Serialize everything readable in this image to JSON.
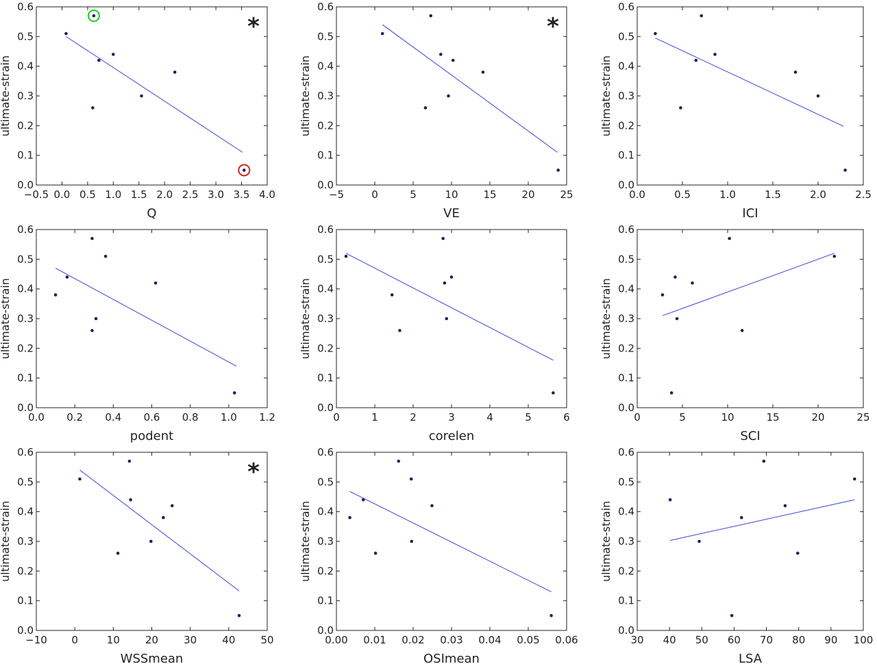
{
  "chart_data": [
    {
      "type": "scatter",
      "xlabel": "Q",
      "ylabel": "ultimate-strain",
      "xlim": [
        -0.5,
        4.0
      ],
      "ylim": [
        0.0,
        0.6
      ],
      "xticks": [
        -0.5,
        0.0,
        0.5,
        1.0,
        1.5,
        2.0,
        2.5,
        3.0,
        3.5,
        4.0
      ],
      "xtick_labels": [
        "−0.5",
        "0.0",
        "0.5",
        "1.0",
        "1.5",
        "2.0",
        "2.5",
        "3.0",
        "3.5",
        "4.0"
      ],
      "yticks": [
        0.0,
        0.1,
        0.2,
        0.3,
        0.4,
        0.5,
        0.6
      ],
      "ytick_labels": [
        "0.0",
        "0.1",
        "0.2",
        "0.3",
        "0.4",
        "0.5",
        "0.6"
      ],
      "points": [
        {
          "x": 0.08,
          "y": 0.51
        },
        {
          "x": 0.62,
          "y": 0.57
        },
        {
          "x": 0.72,
          "y": 0.42
        },
        {
          "x": 1.0,
          "y": 0.44
        },
        {
          "x": 0.6,
          "y": 0.26
        },
        {
          "x": 1.55,
          "y": 0.3
        },
        {
          "x": 2.2,
          "y": 0.38
        },
        {
          "x": 3.55,
          "y": 0.05
        }
      ],
      "fit_line": {
        "x": [
          0.08,
          3.52
        ],
        "y": [
          0.5,
          0.11
        ]
      },
      "significance_mark": "*",
      "highlights": [
        {
          "x": 0.62,
          "y": 0.57,
          "color": "#22cc22"
        },
        {
          "x": 3.55,
          "y": 0.05,
          "color": "#dd2222"
        }
      ],
      "grid": false
    },
    {
      "type": "scatter",
      "xlabel": "VE",
      "ylabel": "ultimate-strain",
      "xlim": [
        -5,
        25
      ],
      "ylim": [
        0.0,
        0.6
      ],
      "xticks": [
        -5,
        0,
        5,
        10,
        15,
        20,
        25
      ],
      "xtick_labels": [
        "−5",
        "0",
        "5",
        "10",
        "15",
        "20",
        "25"
      ],
      "yticks": [
        0.0,
        0.1,
        0.2,
        0.3,
        0.4,
        0.5,
        0.6
      ],
      "ytick_labels": [
        "0.0",
        "0.1",
        "0.2",
        "0.3",
        "0.4",
        "0.5",
        "0.6"
      ],
      "points": [
        {
          "x": 1.0,
          "y": 0.51
        },
        {
          "x": 7.3,
          "y": 0.57
        },
        {
          "x": 8.6,
          "y": 0.44
        },
        {
          "x": 10.2,
          "y": 0.42
        },
        {
          "x": 6.6,
          "y": 0.26
        },
        {
          "x": 9.6,
          "y": 0.3
        },
        {
          "x": 14.1,
          "y": 0.38
        },
        {
          "x": 23.9,
          "y": 0.05
        }
      ],
      "fit_line": {
        "x": [
          1.0,
          23.8
        ],
        "y": [
          0.54,
          0.11
        ]
      },
      "significance_mark": "*",
      "grid": false
    },
    {
      "type": "scatter",
      "xlabel": "ICI",
      "ylabel": "ultimate-strain",
      "xlim": [
        0.0,
        2.5
      ],
      "ylim": [
        0.0,
        0.6
      ],
      "xticks": [
        0.0,
        0.5,
        1.0,
        1.5,
        2.0,
        2.5
      ],
      "xtick_labels": [
        "0.0",
        "0.5",
        "1.0",
        "1.5",
        "2.0",
        "2.5"
      ],
      "yticks": [
        0.0,
        0.1,
        0.2,
        0.3,
        0.4,
        0.5,
        0.6
      ],
      "ytick_labels": [
        "0.0",
        "0.1",
        "0.2",
        "0.3",
        "0.4",
        "0.5",
        "0.6"
      ],
      "points": [
        {
          "x": 0.2,
          "y": 0.51
        },
        {
          "x": 0.71,
          "y": 0.57
        },
        {
          "x": 0.65,
          "y": 0.42
        },
        {
          "x": 0.86,
          "y": 0.44
        },
        {
          "x": 0.48,
          "y": 0.26
        },
        {
          "x": 2.0,
          "y": 0.3
        },
        {
          "x": 1.75,
          "y": 0.38
        },
        {
          "x": 2.3,
          "y": 0.05
        }
      ],
      "fit_line": {
        "x": [
          0.2,
          2.28
        ],
        "y": [
          0.495,
          0.198
        ]
      },
      "grid": false
    },
    {
      "type": "scatter",
      "xlabel": "podent",
      "ylabel": "ultimate-strain",
      "xlim": [
        0.0,
        1.2
      ],
      "ylim": [
        0.0,
        0.6
      ],
      "xticks": [
        0.0,
        0.2,
        0.4,
        0.6,
        0.8,
        1.0,
        1.2
      ],
      "xtick_labels": [
        "0.0",
        "0.2",
        "0.4",
        "0.6",
        "0.8",
        "1.0",
        "1.2"
      ],
      "yticks": [
        0.0,
        0.1,
        0.2,
        0.3,
        0.4,
        0.5,
        0.6
      ],
      "ytick_labels": [
        "0.0",
        "0.1",
        "0.2",
        "0.3",
        "0.4",
        "0.5",
        "0.6"
      ],
      "points": [
        {
          "x": 0.1,
          "y": 0.38
        },
        {
          "x": 0.16,
          "y": 0.44
        },
        {
          "x": 0.29,
          "y": 0.57
        },
        {
          "x": 0.36,
          "y": 0.51
        },
        {
          "x": 0.31,
          "y": 0.3
        },
        {
          "x": 0.29,
          "y": 0.26
        },
        {
          "x": 0.62,
          "y": 0.42
        },
        {
          "x": 1.03,
          "y": 0.05
        }
      ],
      "fit_line": {
        "x": [
          0.1,
          1.04
        ],
        "y": [
          0.47,
          0.14
        ]
      },
      "grid": false
    },
    {
      "type": "scatter",
      "xlabel": "corelen",
      "ylabel": "ultimate-strain",
      "xlim": [
        0,
        6
      ],
      "ylim": [
        0.0,
        0.6
      ],
      "xticks": [
        0,
        1,
        2,
        3,
        4,
        5,
        6
      ],
      "xtick_labels": [
        "0",
        "1",
        "2",
        "3",
        "4",
        "5",
        "6"
      ],
      "yticks": [
        0.0,
        0.1,
        0.2,
        0.3,
        0.4,
        0.5,
        0.6
      ],
      "ytick_labels": [
        "0.0",
        "0.1",
        "0.2",
        "0.3",
        "0.4",
        "0.5",
        "0.6"
      ],
      "points": [
        {
          "x": 0.25,
          "y": 0.51
        },
        {
          "x": 1.45,
          "y": 0.38
        },
        {
          "x": 1.65,
          "y": 0.26
        },
        {
          "x": 2.78,
          "y": 0.57
        },
        {
          "x": 2.82,
          "y": 0.42
        },
        {
          "x": 3.0,
          "y": 0.44
        },
        {
          "x": 2.87,
          "y": 0.3
        },
        {
          "x": 5.65,
          "y": 0.05
        }
      ],
      "fit_line": {
        "x": [
          0.25,
          5.65
        ],
        "y": [
          0.52,
          0.16
        ]
      },
      "grid": false
    },
    {
      "type": "scatter",
      "xlabel": "SCI",
      "ylabel": "ultimate-strain",
      "xlim": [
        0,
        25
      ],
      "ylim": [
        0.0,
        0.6
      ],
      "xticks": [
        0,
        5,
        10,
        15,
        20,
        25
      ],
      "xtick_labels": [
        "0",
        "5",
        "10",
        "15",
        "20",
        "25"
      ],
      "yticks": [
        0.0,
        0.1,
        0.2,
        0.3,
        0.4,
        0.5,
        0.6
      ],
      "ytick_labels": [
        "0.0",
        "0.1",
        "0.2",
        "0.3",
        "0.4",
        "0.5",
        "0.6"
      ],
      "points": [
        {
          "x": 2.8,
          "y": 0.38
        },
        {
          "x": 4.2,
          "y": 0.44
        },
        {
          "x": 4.4,
          "y": 0.3
        },
        {
          "x": 3.8,
          "y": 0.05
        },
        {
          "x": 6.1,
          "y": 0.42
        },
        {
          "x": 10.2,
          "y": 0.57
        },
        {
          "x": 11.6,
          "y": 0.26
        },
        {
          "x": 21.8,
          "y": 0.51
        }
      ],
      "fit_line": {
        "x": [
          2.8,
          21.8
        ],
        "y": [
          0.31,
          0.52
        ]
      },
      "grid": false
    },
    {
      "type": "scatter",
      "xlabel": "WSSmean",
      "ylabel": "ultimate-strain",
      "xlim": [
        -10,
        50
      ],
      "ylim": [
        0.0,
        0.6
      ],
      "xticks": [
        -10,
        0,
        10,
        20,
        30,
        40,
        50
      ],
      "xtick_labels": [
        "−10",
        "0",
        "10",
        "20",
        "30",
        "40",
        "50"
      ],
      "yticks": [
        0.0,
        0.1,
        0.2,
        0.3,
        0.4,
        0.5,
        0.6
      ],
      "ytick_labels": [
        "0.0",
        "0.1",
        "0.2",
        "0.3",
        "0.4",
        "0.5",
        "0.6"
      ],
      "points": [
        {
          "x": 1.3,
          "y": 0.51
        },
        {
          "x": 14.2,
          "y": 0.57
        },
        {
          "x": 14.5,
          "y": 0.44
        },
        {
          "x": 11.2,
          "y": 0.26
        },
        {
          "x": 19.8,
          "y": 0.3
        },
        {
          "x": 23.0,
          "y": 0.38
        },
        {
          "x": 25.3,
          "y": 0.42
        },
        {
          "x": 42.7,
          "y": 0.05
        }
      ],
      "fit_line": {
        "x": [
          1.3,
          42.7
        ],
        "y": [
          0.54,
          0.133
        ]
      },
      "significance_mark": "*",
      "grid": false
    },
    {
      "type": "scatter",
      "xlabel": "OSImean",
      "ylabel": "ultimate-strain",
      "xlim": [
        0.0,
        0.06
      ],
      "ylim": [
        0.0,
        0.6
      ],
      "xticks": [
        0.0,
        0.01,
        0.02,
        0.03,
        0.04,
        0.05,
        0.06
      ],
      "xtick_labels": [
        "0.00",
        "0.01",
        "0.02",
        "0.03",
        "0.04",
        "0.05",
        "0.06"
      ],
      "yticks": [
        0.0,
        0.1,
        0.2,
        0.3,
        0.4,
        0.5,
        0.6
      ],
      "ytick_labels": [
        "0.0",
        "0.1",
        "0.2",
        "0.3",
        "0.4",
        "0.5",
        "0.6"
      ],
      "points": [
        {
          "x": 0.0035,
          "y": 0.38
        },
        {
          "x": 0.007,
          "y": 0.44
        },
        {
          "x": 0.0102,
          "y": 0.26
        },
        {
          "x": 0.0162,
          "y": 0.57
        },
        {
          "x": 0.0195,
          "y": 0.51
        },
        {
          "x": 0.0196,
          "y": 0.3
        },
        {
          "x": 0.0249,
          "y": 0.42
        },
        {
          "x": 0.056,
          "y": 0.05
        }
      ],
      "fit_line": {
        "x": [
          0.0035,
          0.056
        ],
        "y": [
          0.468,
          0.13
        ]
      },
      "grid": false
    },
    {
      "type": "scatter",
      "xlabel": "LSA",
      "ylabel": "ultimate-strain",
      "xlim": [
        30,
        100
      ],
      "ylim": [
        0.0,
        0.6
      ],
      "xticks": [
        30,
        40,
        50,
        60,
        70,
        80,
        90,
        100
      ],
      "xtick_labels": [
        "30",
        "40",
        "50",
        "60",
        "70",
        "80",
        "90",
        "100"
      ],
      "yticks": [
        0.0,
        0.1,
        0.2,
        0.3,
        0.4,
        0.5,
        0.6
      ],
      "ytick_labels": [
        "0.0",
        "0.1",
        "0.2",
        "0.3",
        "0.4",
        "0.5",
        "0.6"
      ],
      "points": [
        {
          "x": 40.2,
          "y": 0.44
        },
        {
          "x": 49.2,
          "y": 0.3
        },
        {
          "x": 59.3,
          "y": 0.05
        },
        {
          "x": 62.3,
          "y": 0.38
        },
        {
          "x": 69.2,
          "y": 0.57
        },
        {
          "x": 75.8,
          "y": 0.42
        },
        {
          "x": 79.7,
          "y": 0.26
        },
        {
          "x": 97.3,
          "y": 0.51
        }
      ],
      "fit_line": {
        "x": [
          40.2,
          97.3
        ],
        "y": [
          0.303,
          0.44
        ]
      },
      "grid": false
    }
  ],
  "colors": {
    "points": "#1f1f5e",
    "fit_line": "#4a56d6",
    "axes": "#222222",
    "text": "#222222"
  }
}
